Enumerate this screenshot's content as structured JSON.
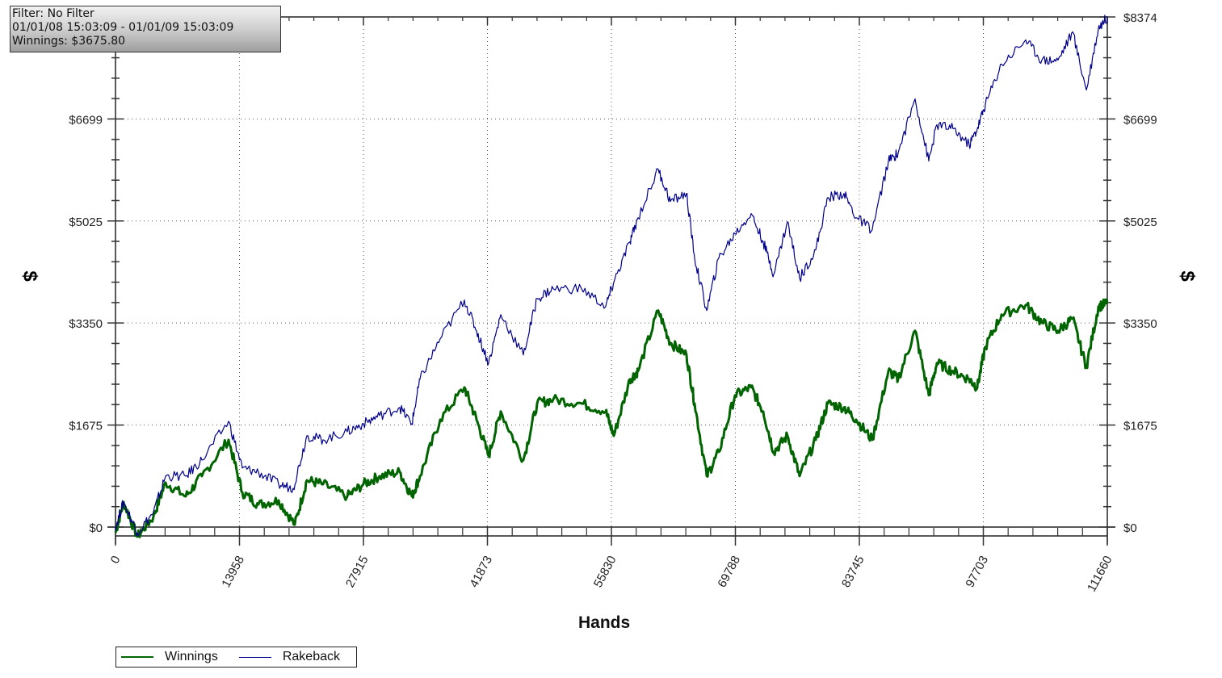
{
  "info_box": {
    "filter": "Filter: No Filter",
    "date_range": "01/01/08 15:03:09 - 01/01/09 15:03:09",
    "winnings": "Winnings: $3675.80"
  },
  "axes": {
    "x_title": "Hands",
    "y_title_left": "$",
    "y_title_right": "$"
  },
  "legend": {
    "items": [
      {
        "label": "Winnings",
        "color": "#006400"
      },
      {
        "label": "Rakeback",
        "color": "#00008b"
      }
    ]
  },
  "chart_data": {
    "type": "line",
    "title": "",
    "xlabel": "Hands",
    "ylabel": "$",
    "xlim": [
      0,
      111660
    ],
    "ylim": [
      0,
      8374
    ],
    "x_ticks": [
      0,
      13958,
      27915,
      41873,
      55830,
      69788,
      83745,
      97703,
      111660
    ],
    "x_tick_labels": [
      "0",
      "13958",
      "27915",
      "41873",
      "55830",
      "69788",
      "83745",
      "97703",
      "111660"
    ],
    "y_ticks": [
      0,
      1675,
      3350,
      5025,
      6699,
      8374
    ],
    "y_tick_labels": [
      "$0",
      "$1675",
      "$3350",
      "$5025",
      "$6699",
      "$8374"
    ],
    "grid": true,
    "legend_position": "bottom-left",
    "series": [
      {
        "name": "Winnings",
        "color": "#006400",
        "x": [
          0,
          909,
          2455,
          4274,
          5638,
          7911,
          9730,
          12730,
          14276,
          16095,
          18368,
          20187,
          21550,
          23369,
          26097,
          27915,
          29734,
          32007,
          33371,
          34280,
          36553,
          39281,
          40645,
          42009,
          43373,
          45919,
          47464,
          49283,
          52466,
          55194,
          56103,
          57922,
          58831,
          61104,
          62468,
          64287,
          65196,
          66560,
          67924,
          69743,
          71562,
          72925,
          74107,
          75653,
          77017,
          78835,
          80199,
          82018,
          83382,
          85200,
          87019,
          88110,
          90019,
          91565,
          92474,
          94293,
          96112,
          97021,
          97930,
          99748,
          102476,
          104295,
          106114,
          107750,
          109296,
          110660,
          111660
        ],
        "values": [
          -93,
          411,
          -159,
          172,
          729,
          504,
          836,
          1432,
          570,
          371,
          438,
          40,
          769,
          703,
          504,
          703,
          836,
          902,
          504,
          836,
          1764,
          2294,
          1764,
          1167,
          1897,
          1101,
          2029,
          2095,
          2029,
          1897,
          1499,
          2427,
          2560,
          3555,
          3024,
          2825,
          2029,
          836,
          1233,
          2162,
          2294,
          1897,
          1233,
          1499,
          836,
          1432,
          2029,
          1963,
          1764,
          1432,
          2560,
          2427,
          3223,
          2162,
          2692,
          2560,
          2427,
          2294,
          2957,
          3488,
          3647,
          3355,
          3223,
          3422,
          2626,
          3621,
          3676
        ]
      },
      {
        "name": "Rakeback",
        "color": "#00008b",
        "x": [
          0,
          909,
          2455,
          4274,
          5638,
          7911,
          9730,
          12730,
          14276,
          16095,
          18368,
          20005,
          21550,
          23369,
          26097,
          27915,
          29734,
          32007,
          33371,
          34280,
          36553,
          39281,
          40645,
          42009,
          43373,
          45919,
          47464,
          49283,
          52466,
          55194,
          56103,
          57922,
          58831,
          61104,
          62468,
          64287,
          65196,
          66560,
          67924,
          69743,
          71562,
          72925,
          74107,
          75653,
          77017,
          78835,
          80199,
          82018,
          83382,
          85200,
          87019,
          88110,
          90019,
          91565,
          92474,
          94293,
          96112,
          97021,
          97930,
          99748,
          102476,
          104295,
          106114,
          107750,
          109296,
          110660,
          111660
        ],
        "values": [
          0,
          411,
          -93,
          239,
          836,
          836,
          1101,
          1737,
          968,
          902,
          703,
          637,
          1499,
          1432,
          1565,
          1697,
          1830,
          1963,
          1697,
          2427,
          3090,
          3727,
          3223,
          2692,
          3488,
          2825,
          3754,
          3913,
          3913,
          3621,
          4019,
          4682,
          5079,
          5875,
          5345,
          5477,
          4417,
          3555,
          4417,
          4815,
          5146,
          4682,
          4152,
          5013,
          4084,
          4549,
          5411,
          5477,
          5079,
          4881,
          6008,
          6141,
          7029,
          6008,
          6605,
          6539,
          6273,
          6539,
          6937,
          7600,
          7998,
          7666,
          7666,
          8130,
          7175,
          8196,
          8374
        ]
      }
    ]
  }
}
